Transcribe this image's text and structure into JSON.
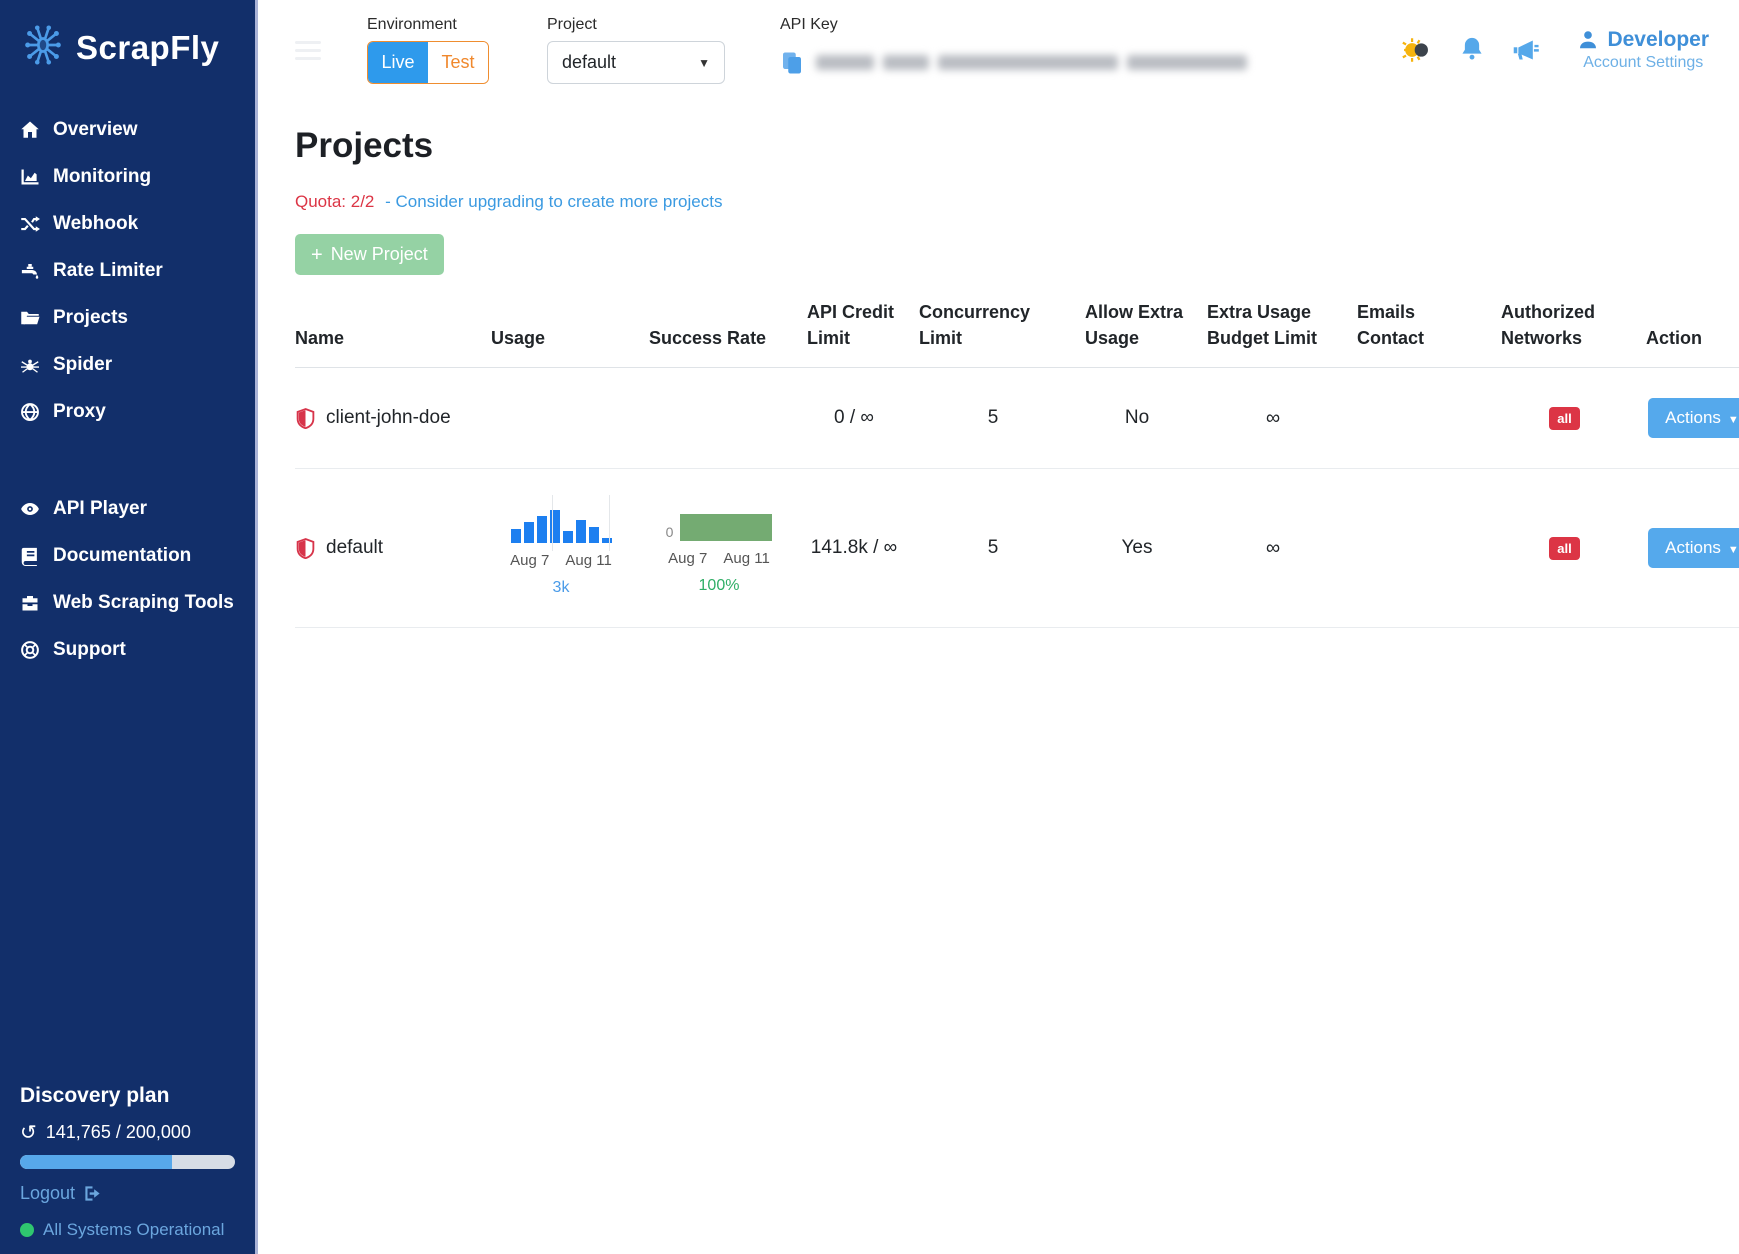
{
  "app": {
    "name": "ScrapFly"
  },
  "sidebar": {
    "items": [
      {
        "label": "Overview",
        "icon": "home"
      },
      {
        "label": "Monitoring",
        "icon": "chart"
      },
      {
        "label": "Webhook",
        "icon": "shuffle"
      },
      {
        "label": "Rate Limiter",
        "icon": "faucet"
      },
      {
        "label": "Projects",
        "icon": "folder"
      },
      {
        "label": "Spider",
        "icon": "spider"
      },
      {
        "label": "Proxy",
        "icon": "globe"
      }
    ],
    "secondary_items": [
      {
        "label": "API Player",
        "icon": "eye"
      },
      {
        "label": "Documentation",
        "icon": "book"
      },
      {
        "label": "Web Scraping Tools",
        "icon": "toolbox"
      },
      {
        "label": "Support",
        "icon": "life-ring"
      }
    ],
    "plan": {
      "name": "Discovery plan",
      "usage": "141,765 / 200,000",
      "progress_pct": 70.9
    },
    "logout_label": "Logout",
    "status": "All Systems Operational"
  },
  "topbar": {
    "environment": {
      "label": "Environment",
      "live": "Live",
      "test": "Test",
      "selected": "Live"
    },
    "project": {
      "label": "Project",
      "selected": "default"
    },
    "api_key": {
      "label": "API Key",
      "redacted": true
    },
    "icons": [
      "theme-toggle",
      "notifications-bell",
      "announcements-megaphone"
    ],
    "user": {
      "name": "Developer",
      "sub": "Account Settings"
    }
  },
  "main": {
    "title": "Projects",
    "quota_label": "Quota: 2/2",
    "quota_link": "- Consider upgrading to create more projects",
    "new_project": {
      "plus": "+",
      "label": "New Project"
    }
  },
  "table": {
    "headers": [
      "Name",
      "Usage",
      "Success Rate",
      "API Credit Limit",
      "Concurrency Limit",
      "Allow Extra Usage",
      "Extra Usage Budget Limit",
      "Emails Contact",
      "Authorized Networks",
      "Action"
    ],
    "rows": [
      {
        "name": "client-john-doe",
        "usage": "",
        "success_rate": "",
        "api_credit_limit": "0 / ∞",
        "concurrency": "5",
        "allow_extra_usage": "No",
        "extra_usage_budget_limit": "∞",
        "emails_contact": "",
        "networks_badge": "all",
        "action_label": "Actions"
      },
      {
        "name": "default",
        "usage_total_label": "3k",
        "success_rate_label": "100%",
        "api_credit_limit": "141.8k / ∞",
        "concurrency": "5",
        "allow_extra_usage": "Yes",
        "extra_usage_budget_limit": "∞",
        "emails_contact": "",
        "networks_badge": "all",
        "action_label": "Actions"
      }
    ]
  },
  "chart_data": [
    {
      "type": "bar",
      "title": "Usage sparkline (default project)",
      "x_labels_shown": [
        "Aug 7",
        "Aug 11"
      ],
      "values_relative": [
        33,
        48,
        62,
        76,
        28,
        52,
        36,
        12
      ],
      "values_est_requests": [
        1300,
        1900,
        2500,
        3000,
        1100,
        2100,
        1450,
        500
      ],
      "total_label": "3k",
      "color": "#1d7ff0",
      "grid": true,
      "legend": false
    },
    {
      "type": "area",
      "title": "Success rate sparkline (default project)",
      "x_labels_shown": [
        "Aug 7",
        "Aug 11"
      ],
      "y_baseline_label": "0",
      "constant_value_pct": 100,
      "value_label": "100%",
      "color": "#74ab72",
      "grid": false,
      "legend": false
    }
  ]
}
